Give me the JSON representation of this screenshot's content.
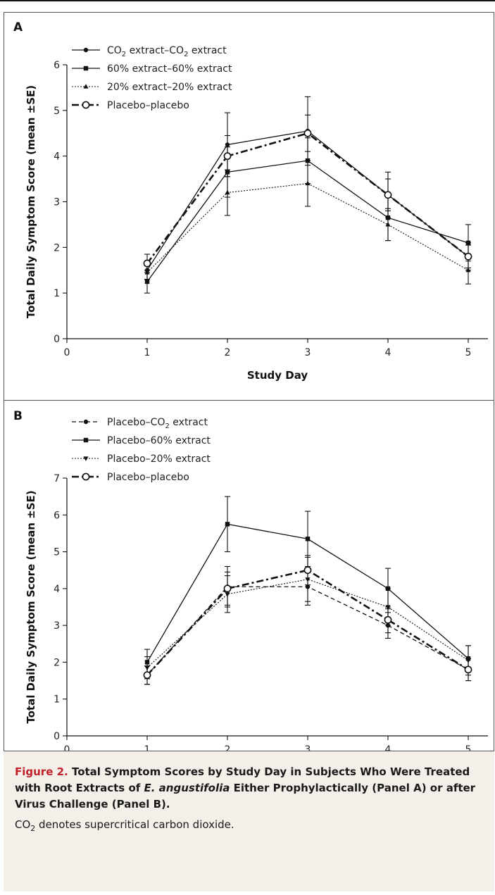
{
  "figure": {
    "label": "Figure 2.",
    "title_pre": "Total Symptom Scores by Study Day in Subjects Who Were Treated with Root Extracts of ",
    "title_italic": "E. angustifolia",
    "title_post": " Either Prophylactically (Panel A) or after Virus Challenge (Panel B).",
    "note_co": "CO",
    "note_sub": "2",
    "note_rest": " denotes supercritical carbon dioxide."
  },
  "chart_data": [
    {
      "panel": "A",
      "type": "line",
      "xlabel": "Study Day",
      "ylabel": "Total Daily Symptom Score (mean ±SE)",
      "x": [
        1,
        2,
        3,
        4,
        5
      ],
      "xlim": [
        0,
        5
      ],
      "xticks": [
        "0",
        "1",
        "2",
        "3",
        "4",
        "5"
      ],
      "ylim": [
        0,
        6
      ],
      "yticks": [
        "0",
        "1",
        "2",
        "3",
        "4",
        "5",
        "6"
      ],
      "grid": false,
      "legend_position": "top-left",
      "series": [
        {
          "name": "CO₂ extract–CO₂ extract",
          "label_main": "CO",
          "label_sub": "2",
          "label_mid": " extract–CO",
          "label_sub2": "2",
          "label_end": " extract",
          "values": [
            1.5,
            4.25,
            4.55,
            3.15,
            1.8
          ],
          "err": [
            0.2,
            0.7,
            0.75,
            0.5,
            0.3
          ],
          "style": "solid",
          "marker": "dot"
        },
        {
          "name": "60% extract–60% extract",
          "label_main": "60% extract–60% extract",
          "values": [
            1.25,
            3.65,
            3.9,
            2.65,
            2.1
          ],
          "err": [
            0.25,
            0.55,
            0.5,
            0.5,
            0.4
          ],
          "style": "solid",
          "marker": "square"
        },
        {
          "name": "20% extract–20% extract",
          "label_main": "20% extract–20% extract",
          "values": [
            1.45,
            3.2,
            3.4,
            2.5,
            1.5
          ],
          "err": [
            0.15,
            0.5,
            0.5,
            0.35,
            0.3
          ],
          "style": "dotted",
          "marker": "triangle"
        },
        {
          "name": "Placebo–placebo",
          "label_main": "Placebo–placebo",
          "values": [
            1.65,
            4.0,
            4.5,
            3.15,
            1.8
          ],
          "err": [
            0.2,
            0.45,
            0.4,
            0.35,
            0.25
          ],
          "style": "dashdot",
          "marker": "open-circle"
        }
      ]
    },
    {
      "panel": "B",
      "type": "line",
      "xlabel": "Study Day",
      "ylabel": "Total Daily Symptom Score (mean ±SE)",
      "x": [
        1,
        2,
        3,
        4,
        5
      ],
      "xlim": [
        0,
        5
      ],
      "xticks": [
        "0",
        "1",
        "2",
        "3",
        "4",
        "5"
      ],
      "ylim": [
        0,
        7
      ],
      "yticks": [
        "0",
        "1",
        "2",
        "3",
        "4",
        "5",
        "6",
        "7"
      ],
      "grid": false,
      "legend_position": "top-left",
      "series": [
        {
          "name": "Placebo–CO₂ extract",
          "label_main": "Placebo–CO",
          "label_sub": "2",
          "label_end": " extract",
          "values": [
            1.65,
            4.05,
            4.05,
            3.0,
            1.8
          ],
          "err": [
            0.25,
            0.55,
            0.5,
            0.35,
            0.3
          ],
          "style": "dashed",
          "marker": "dot"
        },
        {
          "name": "Placebo–60% extract",
          "label_main": "Placebo–60% extract",
          "values": [
            2.0,
            5.75,
            5.35,
            4.0,
            2.1
          ],
          "err": [
            0.35,
            0.75,
            0.75,
            0.55,
            0.35
          ],
          "style": "solid",
          "marker": "square"
        },
        {
          "name": "Placebo–20% extract",
          "label_main": "Placebo–20% extract",
          "values": [
            1.85,
            3.85,
            4.25,
            3.5,
            2.05
          ],
          "err": [
            0.3,
            0.5,
            0.6,
            0.5,
            0.4
          ],
          "style": "dotted",
          "marker": "triangle-down"
        },
        {
          "name": "Placebo–placebo",
          "label_main": "Placebo–placebo",
          "values": [
            1.65,
            4.0,
            4.5,
            3.15,
            1.8
          ],
          "err": [
            0.25,
            0.45,
            0.4,
            0.35,
            0.3
          ],
          "style": "dashdot",
          "marker": "open-circle"
        }
      ]
    }
  ]
}
